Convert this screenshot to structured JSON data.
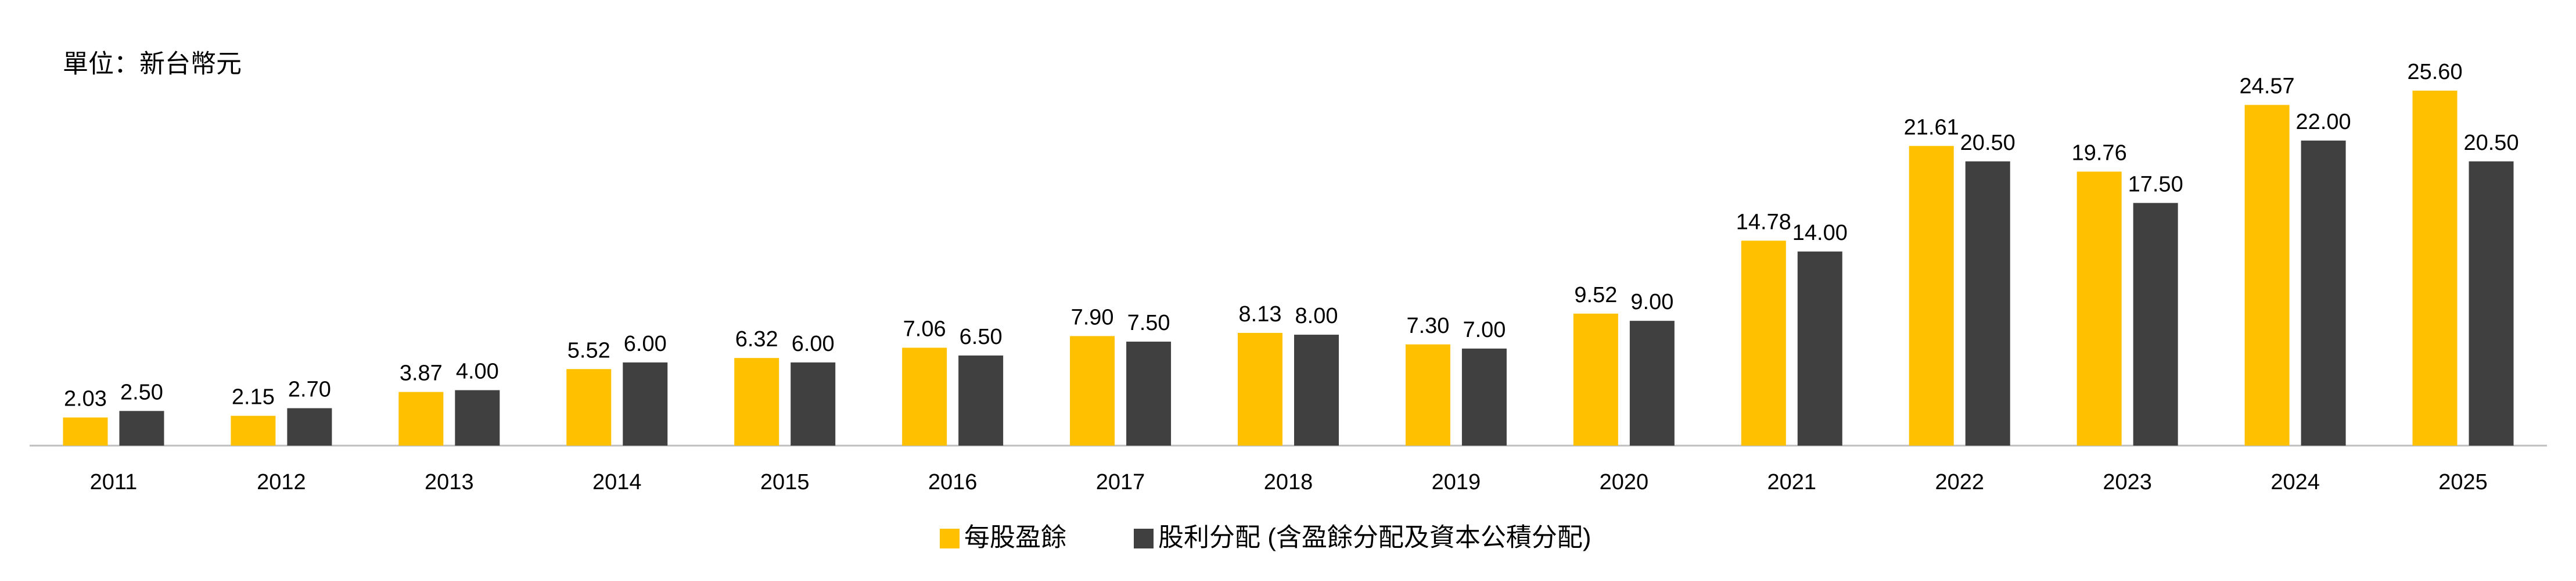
{
  "chart_data": {
    "type": "bar",
    "subtitle": "單位：新台幣元",
    "categories": [
      "2011",
      "2012",
      "2013",
      "2014",
      "2015",
      "2016",
      "2017",
      "2018",
      "2019",
      "2020",
      "2021",
      "2022",
      "2023",
      "2024",
      "2025"
    ],
    "series": [
      {
        "name": "每股盈餘",
        "color": "#FFC000",
        "values": [
          2.03,
          2.15,
          3.87,
          5.52,
          6.32,
          7.06,
          7.9,
          8.13,
          7.3,
          9.52,
          14.78,
          21.61,
          19.76,
          24.57,
          25.6
        ],
        "value_labels": [
          "2.03",
          "2.15",
          "3.87",
          "5.52",
          "6.32",
          "7.06",
          "7.90",
          "8.13",
          "7.30",
          "9.52",
          "14.78",
          "21.61",
          "19.76",
          "24.57",
          "25.60"
        ]
      },
      {
        "name": "股利分配 (含盈餘分配及資本公積分配)",
        "color": "#404040",
        "values": [
          2.5,
          2.7,
          4,
          6,
          6,
          6.5,
          7.5,
          8,
          7,
          9,
          14,
          20.5,
          17.5,
          22,
          20.5
        ],
        "value_labels": [
          "2.50",
          "2.70",
          "4.00",
          "6.00",
          "6.00",
          "6.50",
          "7.50",
          "8.00",
          "7.00",
          "9.00",
          "14.00",
          "20.50",
          "17.50",
          "22.00",
          "20.50"
        ]
      }
    ]
  }
}
